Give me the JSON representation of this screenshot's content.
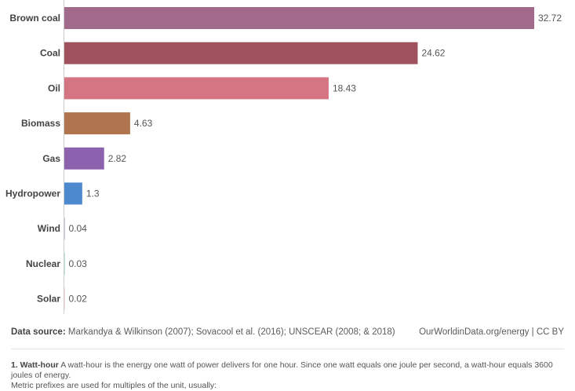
{
  "chart_data": {
    "type": "bar",
    "orientation": "horizontal",
    "categories": [
      "Brown coal",
      "Coal",
      "Oil",
      "Biomass",
      "Gas",
      "Hydropower",
      "Wind",
      "Nuclear",
      "Solar"
    ],
    "values": [
      32.72,
      24.62,
      18.43,
      4.63,
      2.82,
      1.3,
      0.04,
      0.03,
      0.02
    ],
    "value_labels": [
      "32.72",
      "24.62",
      "18.43",
      "4.63",
      "2.82",
      "1.3",
      "0.04",
      "0.03",
      "0.02"
    ],
    "colors": [
      "#a26a8a",
      "#a0535e",
      "#d57583",
      "#b0754f",
      "#8c61ad",
      "#4d89ce",
      "#8a9ab8",
      "#7dc9c0",
      "#e8b7b0"
    ],
    "xlim": [
      0,
      32.72
    ],
    "grid": false
  },
  "footer": {
    "source_label": "Data source:",
    "source_text": "Markandya & Wilkinson (2007); Sovacool et al. (2016); UNSCEAR (2008; & 2018)",
    "credit": "OurWorldinData.org/energy | CC BY"
  },
  "note": {
    "term": "1. Watt-hour",
    "text": "A watt-hour is the energy one watt of power delivers for one hour. Since one watt equals one joule per second, a watt-hour equals 3600 joules of energy.",
    "line2": "Metric prefixes are used for multiples of the unit, usually:"
  }
}
